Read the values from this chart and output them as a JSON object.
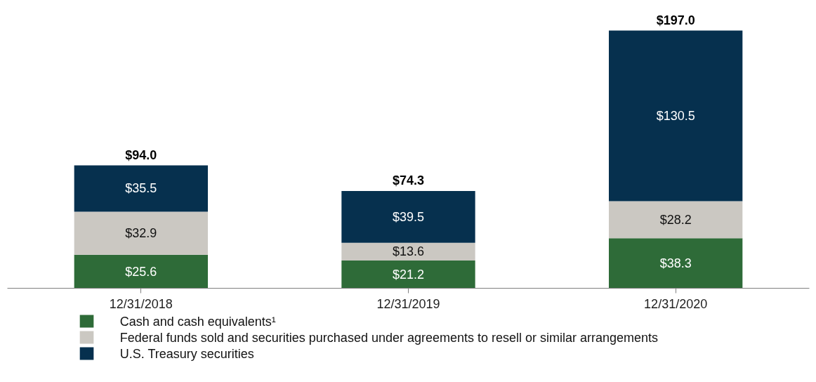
{
  "chart_data": {
    "type": "bar",
    "stacked": true,
    "legend": "bottom",
    "grid": false,
    "categories": [
      "12/31/2018",
      "12/31/2019",
      "12/31/2020"
    ],
    "series": [
      {
        "name": "Cash and cash equivalents¹",
        "color": "#2e6b38",
        "values": [
          25.6,
          21.2,
          38.3
        ],
        "value_labels": [
          "$25.6",
          "$21.2",
          "$38.3"
        ]
      },
      {
        "name": "Federal funds sold and securities purchased under agreements to resell or similar arrangements",
        "color": "#cbc8c2",
        "values": [
          32.9,
          13.6,
          28.2
        ],
        "value_labels": [
          "$32.9",
          "$13.6",
          "$28.2"
        ]
      },
      {
        "name": "U.S. Treasury securities",
        "color": "#06304e",
        "values": [
          35.5,
          39.5,
          130.5
        ],
        "value_labels": [
          "$35.5",
          "$39.5",
          "$130.5"
        ]
      }
    ],
    "totals": [
      "$94.0",
      "$74.3",
      "$197.0"
    ]
  }
}
